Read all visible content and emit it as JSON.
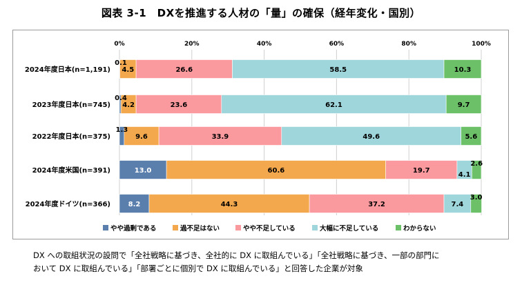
{
  "figure": {
    "title": "図表 3-1　DXを推進する人材の「量」の確保（経年変化・国別）",
    "note_lines": [
      "DX への取組状況の設問で「全社戦略に基づき、全社的に DX に取組んでいる」「全社戦略に基づき、一部の部門に",
      "おいて DX に取組んでいる」「部署ごとに個別で DX に取組んでいる」と回答した企業が対象"
    ]
  },
  "chart_data": {
    "type": "bar",
    "orientation": "horizontal",
    "stacked": true,
    "xlim": [
      0,
      100
    ],
    "xticks": [
      "0%",
      "20%",
      "40%",
      "60%",
      "80%",
      "100%"
    ],
    "grid": true,
    "legend_position": "bottom",
    "categories": [
      "2024年度日本(n=1,191)",
      "2023年度日本(n=745)",
      "2022年度日本(n=375)",
      "2024年度米国(n=391)",
      "2024年度ドイツ(n=366)"
    ],
    "series": [
      {
        "name": "やや過剰である",
        "color": "#5b7fad",
        "values": [
          0.1,
          0.4,
          1.3,
          13.0,
          8.2
        ]
      },
      {
        "name": "過不足はない",
        "color": "#f4a84d",
        "values": [
          4.5,
          4.2,
          9.6,
          60.6,
          44.3
        ]
      },
      {
        "name": "やや不足している",
        "color": "#fa9a9e",
        "values": [
          26.6,
          23.6,
          33.9,
          19.7,
          37.2
        ]
      },
      {
        "name": "大幅に不足している",
        "color": "#9ed6dc",
        "values": [
          58.5,
          62.1,
          49.6,
          4.1,
          7.4
        ]
      },
      {
        "name": "わからない",
        "color": "#6cc068",
        "values": [
          10.3,
          9.7,
          5.6,
          2.6,
          3.0
        ]
      }
    ],
    "data_labels": [
      [
        "0.1",
        "4.5",
        "26.6",
        "58.5",
        "10.3"
      ],
      [
        "0.4",
        "4.2",
        "23.6",
        "62.1",
        "9.7"
      ],
      [
        "1.3",
        "9.6",
        "33.9",
        "49.6",
        "5.6"
      ],
      [
        "13.0",
        "60.6",
        "19.7",
        "4.1",
        "2.6"
      ],
      [
        "8.2",
        "44.3",
        "37.2",
        "7.4",
        "3.0"
      ]
    ]
  }
}
